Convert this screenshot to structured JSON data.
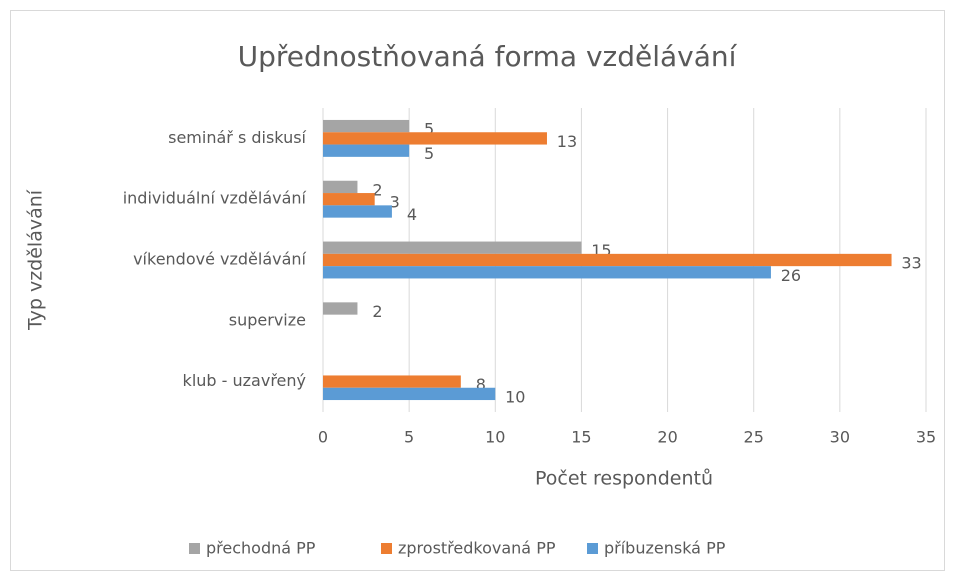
{
  "chart_data": {
    "type": "bar",
    "orientation": "horizontal",
    "title": "Upřednostňovaná forma vzdělávání",
    "x_label": "Počet respondentů",
    "y_label": "Typ vzdělávání",
    "categories": [
      "seminář s diskusí",
      "individuální vzdělávání",
      "víkendové vzdělávání",
      "supervize",
      "klub - uzavřený"
    ],
    "series": [
      {
        "name": "přechodná PP",
        "color": "#a5a5a5",
        "values": [
          5,
          2,
          15,
          2,
          null
        ]
      },
      {
        "name": "zprostředkovaná PP",
        "color": "#ed7d31",
        "values": [
          13,
          3,
          33,
          null,
          8
        ]
      },
      {
        "name": "příbuzenská PP",
        "color": "#5b9bd5",
        "values": [
          5,
          4,
          26,
          null,
          10
        ]
      }
    ],
    "xlim": [
      0,
      35
    ],
    "xticks": [
      0,
      5,
      10,
      15,
      20,
      25,
      30,
      35
    ],
    "grid": true,
    "legend": "bottom"
  }
}
